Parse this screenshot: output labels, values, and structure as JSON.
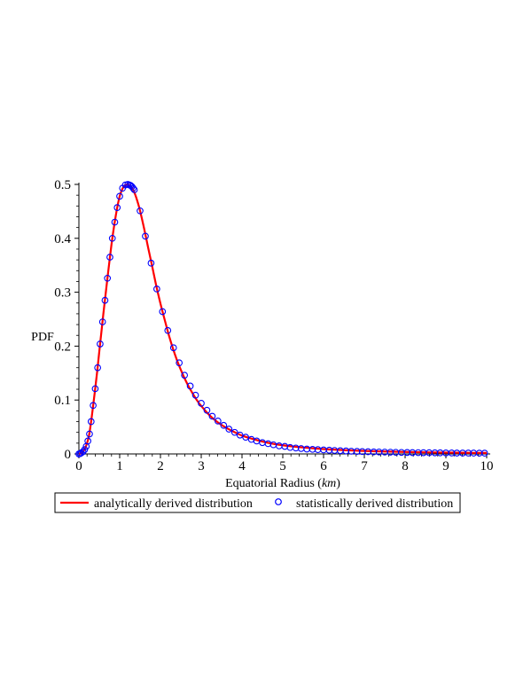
{
  "chart_data": {
    "type": "line",
    "xlabel": "Equatorial Radius (km)",
    "xlabel_prefix": "Equatorial Radius (",
    "xlabel_unit": "km",
    "xlabel_suffix": ")",
    "ylabel": "PDF",
    "xlim": [
      0,
      10
    ],
    "ylim": [
      0,
      0.5
    ],
    "xticks": [
      "0",
      "1",
      "2",
      "3",
      "4",
      "5",
      "6",
      "7",
      "8",
      "9",
      "10"
    ],
    "yticks": [
      "0",
      "0.1",
      "0.2",
      "0.3",
      "0.4",
      "0.5"
    ],
    "grid": false,
    "legend_placement": "bottom",
    "series": [
      {
        "name": "analytically derived distribution",
        "style": "line",
        "color": "#ff0000",
        "x": [
          0,
          0.05,
          0.1,
          0.15,
          0.2,
          0.25,
          0.3,
          0.35,
          0.4,
          0.45,
          0.5,
          0.55,
          0.6,
          0.65,
          0.7,
          0.75,
          0.8,
          0.85,
          0.9,
          0.95,
          1.0,
          1.05,
          1.1,
          1.15,
          1.2,
          1.25,
          1.3,
          1.35,
          1.4,
          1.45,
          1.5,
          1.6,
          1.7,
          1.8,
          1.9,
          2.0,
          2.1,
          2.2,
          2.3,
          2.4,
          2.5,
          2.6,
          2.7,
          2.8,
          2.9,
          3.0,
          3.2,
          3.4,
          3.6,
          3.8,
          4.0,
          4.25,
          4.5,
          4.75,
          5.0,
          5.5,
          6.0,
          6.5,
          7.0,
          7.5,
          8.0,
          8.5,
          9.0,
          9.5,
          10.0
        ],
        "y": [
          0,
          0.001,
          0.004,
          0.01,
          0.02,
          0.035,
          0.06,
          0.09,
          0.121,
          0.154,
          0.19,
          0.225,
          0.26,
          0.293,
          0.326,
          0.358,
          0.389,
          0.416,
          0.44,
          0.461,
          0.478,
          0.489,
          0.496,
          0.499,
          0.5,
          0.498,
          0.494,
          0.487,
          0.477,
          0.465,
          0.451,
          0.418,
          0.382,
          0.347,
          0.311,
          0.279,
          0.25,
          0.222,
          0.197,
          0.175,
          0.156,
          0.139,
          0.124,
          0.111,
          0.099,
          0.089,
          0.072,
          0.059,
          0.049,
          0.041,
          0.034,
          0.028,
          0.023,
          0.019,
          0.016,
          0.012,
          0.009,
          0.007,
          0.0055,
          0.0045,
          0.0037,
          0.003,
          0.0025,
          0.0021,
          0.0018
        ]
      },
      {
        "name": "statistically derived distribution",
        "style": "markers",
        "marker": "open-circle",
        "color": "#0000ff",
        "x": [
          0,
          0.03,
          0.06,
          0.1,
          0.14,
          0.18,
          0.22,
          0.26,
          0.3,
          0.35,
          0.4,
          0.46,
          0.52,
          0.58,
          0.64,
          0.7,
          0.76,
          0.82,
          0.88,
          0.94,
          1.0,
          1.07,
          1.14,
          1.2,
          1.24,
          1.27,
          1.3,
          1.33,
          1.36,
          1.5,
          1.63,
          1.77,
          1.91,
          2.05,
          2.18,
          2.32,
          2.46,
          2.59,
          2.73,
          2.86,
          3.0,
          3.14,
          3.27,
          3.41,
          3.55,
          3.68,
          3.82,
          3.95,
          4.09,
          4.23,
          4.36,
          4.5,
          4.64,
          4.77,
          4.91,
          5.05,
          5.18,
          5.32,
          5.45,
          5.59,
          5.73,
          5.86,
          6.0,
          6.14,
          6.27,
          6.41,
          6.55,
          6.68,
          6.82,
          6.95,
          7.09,
          7.23,
          7.36,
          7.5,
          7.64,
          7.77,
          7.91,
          8.05,
          8.18,
          8.32,
          8.45,
          8.59,
          8.73,
          8.86,
          9.0,
          9.14,
          9.27,
          9.41,
          9.55,
          9.68,
          9.82,
          9.95
        ],
        "y": [
          0,
          0.0005,
          0.002,
          0.004,
          0.008,
          0.014,
          0.024,
          0.037,
          0.06,
          0.09,
          0.121,
          0.16,
          0.204,
          0.245,
          0.285,
          0.326,
          0.365,
          0.4,
          0.43,
          0.457,
          0.478,
          0.493,
          0.499,
          0.5,
          0.499,
          0.498,
          0.496,
          0.493,
          0.49,
          0.451,
          0.404,
          0.354,
          0.306,
          0.264,
          0.229,
          0.197,
          0.169,
          0.146,
          0.126,
          0.109,
          0.094,
          0.081,
          0.07,
          0.061,
          0.053,
          0.046,
          0.04,
          0.035,
          0.031,
          0.027,
          0.024,
          0.021,
          0.019,
          0.017,
          0.015,
          0.014,
          0.012,
          0.011,
          0.01,
          0.009,
          0.0085,
          0.008,
          0.0075,
          0.007,
          0.0065,
          0.006,
          0.0055,
          0.005,
          0.0047,
          0.0044,
          0.0041,
          0.0038,
          0.0036,
          0.0034,
          0.0032,
          0.003,
          0.0028,
          0.0027,
          0.0025,
          0.0024,
          0.0023,
          0.0022,
          0.0021,
          0.002,
          0.0019,
          0.0018,
          0.0017,
          0.0017,
          0.0016,
          0.0016,
          0.0015,
          0.0015
        ]
      }
    ]
  }
}
